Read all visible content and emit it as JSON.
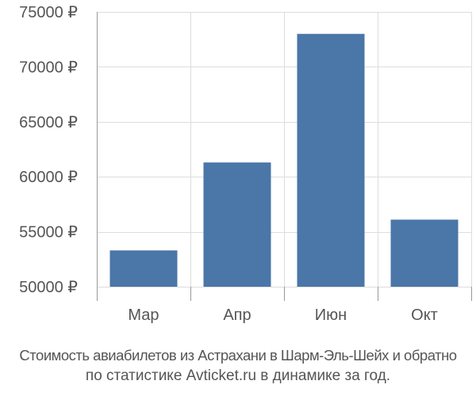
{
  "chart_data": {
    "type": "bar",
    "categories": [
      "Мар",
      "Апр",
      "Июн",
      "Окт"
    ],
    "values": [
      53300,
      61300,
      73000,
      56100
    ],
    "ylim": [
      50000,
      75000
    ],
    "yticks": [
      50000,
      55000,
      60000,
      65000,
      70000,
      75000
    ],
    "ytick_labels": [
      "50000 ₽",
      "55000 ₽",
      "60000 ₽",
      "65000 ₽",
      "70000 ₽",
      "75000 ₽"
    ],
    "title": "",
    "xlabel": "",
    "ylabel": "",
    "grid": true,
    "bar_color": "#4a76a8",
    "grid_color": "#dddddd",
    "axis_color": "#999999"
  },
  "caption": {
    "line1": "Стоимость авиабилетов из Астрахани в Шарм-Эль-Шейх и обратно",
    "line2": "по статистике Avticket.ru в динамике за год."
  }
}
